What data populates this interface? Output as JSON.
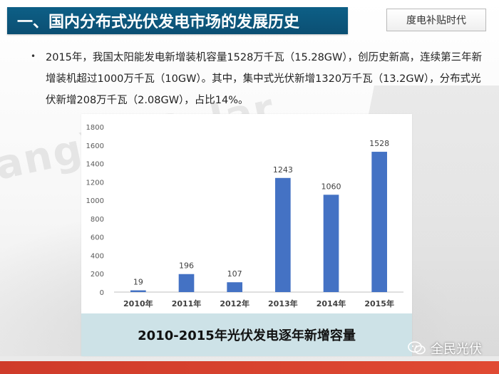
{
  "header": {
    "title": "一、国内分布式光伏发电市场的发展历史",
    "tag": "度电补贴时代"
  },
  "bullet": {
    "marker": "•",
    "text": "2015年，我国太阳能发电新增装机容量1528万千瓦（15.28GW），创历史新高，连续第三年新增装机超过1000万千瓦（10GW）。其中，集中式光伏新增1320万千瓦（13.2GW），分布式光伏新增208万千瓦（2.08GW），占比14%。"
  },
  "background": {
    "watermark": "angYu Solar"
  },
  "chart_data": {
    "type": "bar",
    "title": "2010-2015年光伏发电逐年新增容量",
    "categories": [
      "2010年",
      "2011年",
      "2012年",
      "2013年",
      "2014年",
      "2015年"
    ],
    "values": [
      19,
      196,
      107,
      1243,
      1060,
      1528
    ],
    "data_labels": [
      "19",
      "196",
      "107",
      "1243",
      "1060",
      "1528"
    ],
    "ylim": [
      0,
      1800
    ],
    "yticks": [
      0,
      200,
      400,
      600,
      800,
      1000,
      1200,
      1400,
      1600,
      1800
    ],
    "grid": false,
    "bar_color": "#4472c4",
    "xlabel": "",
    "ylabel": ""
  },
  "brand": {
    "name": "全民光伏",
    "icon": "wechat-icon"
  },
  "colors": {
    "title_bar": "#0b5579",
    "caption_bg": "#cde2e7",
    "footer": "#d9412e"
  }
}
